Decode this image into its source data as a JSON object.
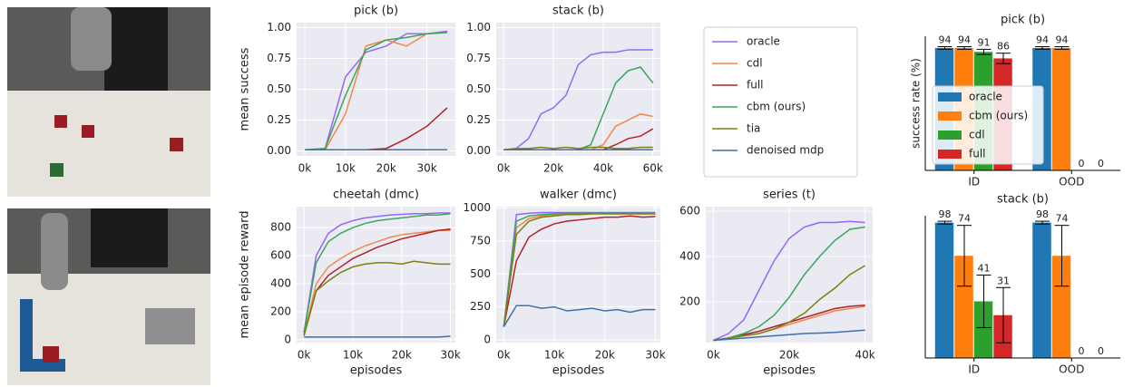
{
  "chart_data": [
    {
      "type": "line",
      "title": "pick (b)",
      "ylabel": "mean success",
      "x": [
        0,
        5000,
        10000,
        15000,
        20000,
        25000,
        30000,
        35000
      ],
      "xlim": [
        -2000,
        37000
      ],
      "ylim": [
        -0.04,
        1.04
      ],
      "xticks": [
        {
          "value": 0,
          "label": "0k"
        },
        {
          "value": 10000,
          "label": "10k"
        },
        {
          "value": 20000,
          "label": "20k"
        },
        {
          "value": 30000,
          "label": "30k"
        }
      ],
      "yticks": [
        {
          "value": 0,
          "label": "0.00"
        },
        {
          "value": 0.25,
          "label": "0.25"
        },
        {
          "value": 0.5,
          "label": "0.50"
        },
        {
          "value": 0.75,
          "label": "0.75"
        },
        {
          "value": 1,
          "label": "1.00"
        }
      ],
      "series": [
        {
          "name": "oracle",
          "color": "#9467fa",
          "values": [
            0.01,
            0.02,
            0.6,
            0.8,
            0.85,
            0.95,
            0.95,
            0.97
          ]
        },
        {
          "name": "cdl",
          "color": "#f0884a",
          "values": [
            0.01,
            0.01,
            0.3,
            0.85,
            0.9,
            0.85,
            0.95,
            0.96
          ]
        },
        {
          "name": "full",
          "color": "#b2222a",
          "values": [
            0.01,
            0.01,
            0.01,
            0.01,
            0.02,
            0.1,
            0.2,
            0.35
          ]
        },
        {
          "name": "cbm (ours)",
          "color": "#3aa65c",
          "values": [
            0.01,
            0.02,
            0.45,
            0.82,
            0.9,
            0.92,
            0.95,
            0.96
          ]
        },
        {
          "name": "tia",
          "color": "#7f7f10",
          "values": [
            0.01,
            0.01,
            0.01,
            0.01,
            0.01,
            0.01,
            0.01,
            0.01
          ]
        },
        {
          "name": "denoised mdp",
          "color": "#3f6fb0",
          "values": [
            0.01,
            0.01,
            0.01,
            0.01,
            0.01,
            0.01,
            0.01,
            0.01
          ]
        }
      ]
    },
    {
      "type": "line",
      "title": "stack (b)",
      "x": [
        0,
        5000,
        10000,
        15000,
        20000,
        25000,
        30000,
        35000,
        40000,
        45000,
        50000,
        55000,
        60000
      ],
      "xlim": [
        -3000,
        63000
      ],
      "ylim": [
        -0.04,
        1.04
      ],
      "xticks": [
        {
          "value": 0,
          "label": "0k"
        },
        {
          "value": 20000,
          "label": "20k"
        },
        {
          "value": 40000,
          "label": "40k"
        },
        {
          "value": 60000,
          "label": "60k"
        }
      ],
      "yticks": [
        {
          "value": 0,
          "label": "0.00"
        },
        {
          "value": 0.25,
          "label": "0.25"
        },
        {
          "value": 0.5,
          "label": "0.50"
        },
        {
          "value": 0.75,
          "label": "0.75"
        },
        {
          "value": 1,
          "label": "1.00"
        }
      ],
      "series": [
        {
          "color": "#9467fa",
          "values": [
            0.01,
            0.02,
            0.1,
            0.3,
            0.35,
            0.45,
            0.7,
            0.78,
            0.8,
            0.8,
            0.82,
            0.82,
            0.82
          ]
        },
        {
          "color": "#f0884a",
          "values": [
            0.01,
            0.01,
            0.01,
            0.01,
            0.01,
            0.01,
            0.01,
            0.01,
            0.05,
            0.2,
            0.25,
            0.3,
            0.28
          ]
        },
        {
          "color": "#b2222a",
          "values": [
            0.01,
            0.01,
            0.01,
            0.01,
            0.01,
            0.01,
            0.01,
            0.01,
            0.01,
            0.05,
            0.1,
            0.12,
            0.18
          ]
        },
        {
          "color": "#3aa65c",
          "values": [
            0.01,
            0.01,
            0.01,
            0.01,
            0.01,
            0.01,
            0.01,
            0.05,
            0.3,
            0.55,
            0.65,
            0.68,
            0.55
          ]
        },
        {
          "color": "#7f7f10",
          "values": [
            0.01,
            0.02,
            0.02,
            0.03,
            0.02,
            0.03,
            0.02,
            0.03,
            0.03,
            0.02,
            0.02,
            0.03,
            0.03
          ]
        },
        {
          "color": "#3f6fb0",
          "values": [
            0.01,
            0.01,
            0.01,
            0.01,
            0.01,
            0.01,
            0.01,
            0.01,
            0.01,
            0.01,
            0.01,
            0.01,
            0.01
          ]
        }
      ]
    },
    {
      "type": "line",
      "title": "cheetah (dmc)",
      "ylabel": "mean episode reward",
      "xlabel": "episodes",
      "x": [
        0,
        2500,
        5000,
        7500,
        10000,
        12500,
        15000,
        17500,
        20000,
        22500,
        25000,
        27500,
        30000
      ],
      "xlim": [
        -1500,
        31000
      ],
      "ylim": [
        -20,
        950
      ],
      "xticks": [
        {
          "value": 0,
          "label": "0k"
        },
        {
          "value": 10000,
          "label": "10k"
        },
        {
          "value": 20000,
          "label": "20k"
        },
        {
          "value": 30000,
          "label": "30k"
        }
      ],
      "yticks": [
        0,
        200,
        400,
        600,
        800
      ],
      "series": [
        {
          "color": "#9467fa",
          "values": [
            50,
            600,
            760,
            820,
            850,
            870,
            880,
            890,
            895,
            900,
            900,
            905,
            905
          ]
        },
        {
          "color": "#f0884a",
          "values": [
            30,
            400,
            520,
            580,
            630,
            670,
            700,
            730,
            750,
            760,
            770,
            780,
            780
          ]
        },
        {
          "color": "#b2222a",
          "values": [
            30,
            350,
            460,
            520,
            580,
            620,
            660,
            690,
            720,
            740,
            760,
            780,
            790
          ]
        },
        {
          "color": "#3aa65c",
          "values": [
            50,
            550,
            700,
            760,
            800,
            830,
            850,
            860,
            870,
            880,
            890,
            890,
            900
          ]
        },
        {
          "color": "#7f7f10",
          "values": [
            30,
            350,
            420,
            480,
            520,
            540,
            550,
            550,
            540,
            560,
            550,
            540,
            540
          ]
        },
        {
          "color": "#3f6fb0",
          "values": [
            20,
            20,
            20,
            20,
            20,
            20,
            20,
            20,
            20,
            20,
            20,
            20,
            25
          ]
        }
      ]
    },
    {
      "type": "line",
      "title": "walker (dmc)",
      "xlabel": "episodes",
      "x": [
        0,
        2500,
        5000,
        7500,
        10000,
        12500,
        15000,
        17500,
        20000,
        22500,
        25000,
        27500,
        30000
      ],
      "xlim": [
        -1500,
        31000
      ],
      "ylim": [
        -20,
        1010
      ],
      "xticks": [
        {
          "value": 0,
          "label": "0k"
        },
        {
          "value": 10000,
          "label": "10k"
        },
        {
          "value": 20000,
          "label": "20k"
        },
        {
          "value": 30000,
          "label": "30k"
        }
      ],
      "yticks": [
        0,
        250,
        500,
        750,
        1000
      ],
      "series": [
        {
          "color": "#9467fa",
          "values": [
            100,
            950,
            960,
            965,
            965,
            965,
            965,
            965,
            965,
            965,
            965,
            965,
            965
          ]
        },
        {
          "color": "#f0884a",
          "values": [
            100,
            850,
            920,
            940,
            950,
            955,
            955,
            960,
            960,
            960,
            960,
            960,
            960
          ]
        },
        {
          "color": "#b2222a",
          "values": [
            100,
            600,
            780,
            840,
            880,
            900,
            910,
            920,
            930,
            930,
            940,
            930,
            935
          ]
        },
        {
          "color": "#3aa65c",
          "values": [
            100,
            900,
            940,
            950,
            955,
            960,
            960,
            960,
            960,
            960,
            960,
            960,
            960
          ]
        },
        {
          "color": "#7f7f10",
          "values": [
            100,
            800,
            900,
            930,
            940,
            950,
            950,
            955,
            955,
            955,
            955,
            955,
            955
          ]
        },
        {
          "color": "#3f6fb0",
          "values": [
            100,
            260,
            260,
            240,
            250,
            220,
            230,
            240,
            220,
            230,
            210,
            230,
            230
          ]
        }
      ]
    },
    {
      "type": "line",
      "title": "series (t)",
      "xlabel": "episodes",
      "x": [
        0,
        4000,
        8000,
        12000,
        16000,
        20000,
        24000,
        28000,
        32000,
        36000,
        40000
      ],
      "xlim": [
        -2000,
        42000
      ],
      "ylim": [
        20,
        620
      ],
      "xticks": [
        {
          "value": 0,
          "label": "0k"
        },
        {
          "value": 20000,
          "label": "20k"
        },
        {
          "value": 40000,
          "label": "40k"
        }
      ],
      "yticks": [
        200,
        400,
        600
      ],
      "series": [
        {
          "color": "#9467fa",
          "values": [
            30,
            60,
            120,
            250,
            380,
            480,
            530,
            550,
            550,
            555,
            550
          ]
        },
        {
          "color": "#f0884a",
          "values": [
            30,
            40,
            50,
            60,
            80,
            100,
            120,
            140,
            160,
            170,
            180
          ]
        },
        {
          "color": "#b2222a",
          "values": [
            30,
            40,
            55,
            70,
            90,
            110,
            130,
            150,
            170,
            180,
            185
          ]
        },
        {
          "color": "#3aa65c",
          "values": [
            30,
            40,
            60,
            90,
            140,
            220,
            320,
            400,
            470,
            520,
            530
          ]
        },
        {
          "color": "#7f7f10",
          "values": [
            30,
            40,
            50,
            60,
            80,
            110,
            150,
            210,
            260,
            320,
            360
          ]
        },
        {
          "color": "#3f6fb0",
          "values": [
            30,
            35,
            40,
            45,
            50,
            55,
            60,
            62,
            65,
            70,
            75
          ]
        }
      ]
    },
    {
      "type": "bar",
      "title": "pick (b)",
      "ylabel": "success rate (%)",
      "categories": [
        "ID",
        "OOD"
      ],
      "ylim": [
        0,
        103
      ],
      "series": [
        {
          "name": "oracle",
          "color": "#1f77b4",
          "values": [
            94,
            94
          ],
          "errors": [
            1,
            1
          ]
        },
        {
          "name": "cbm (ours)",
          "color": "#ff7f0e",
          "values": [
            94,
            94
          ],
          "errors": [
            1,
            1
          ]
        },
        {
          "name": "cdl",
          "color": "#2ca02c",
          "values": [
            91,
            0
          ],
          "errors": [
            2,
            0
          ]
        },
        {
          "name": "full",
          "color": "#d62728",
          "values": [
            86,
            0
          ],
          "errors": [
            4,
            0
          ]
        }
      ]
    },
    {
      "type": "bar",
      "title": "stack (b)",
      "categories": [
        "ID",
        "OOD"
      ],
      "ylim": [
        0,
        103
      ],
      "series": [
        {
          "color": "#1f77b4",
          "values": [
            98,
            98
          ],
          "errors": [
            1,
            1
          ]
        },
        {
          "color": "#ff7f0e",
          "values": [
            74,
            74
          ],
          "errors": [
            22,
            22
          ]
        },
        {
          "color": "#2ca02c",
          "values": [
            41,
            0
          ],
          "errors": [
            19,
            0
          ]
        },
        {
          "color": "#d62728",
          "values": [
            31,
            0
          ],
          "errors": [
            20,
            0
          ]
        }
      ]
    }
  ]
}
